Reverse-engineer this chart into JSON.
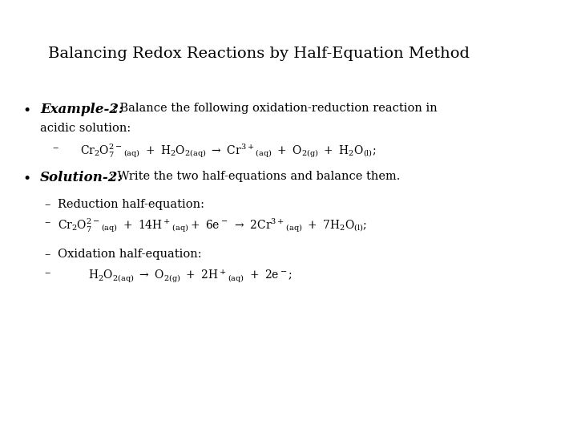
{
  "title": "Balancing Redox Reactions by Half-Equation Method",
  "background_color": "#ffffff",
  "text_color": "#000000",
  "title_fontsize": 14,
  "body_fontsize": 10.5,
  "small_fontsize": 10,
  "eq_fontsize": 10,
  "bold_fontsize": 12
}
